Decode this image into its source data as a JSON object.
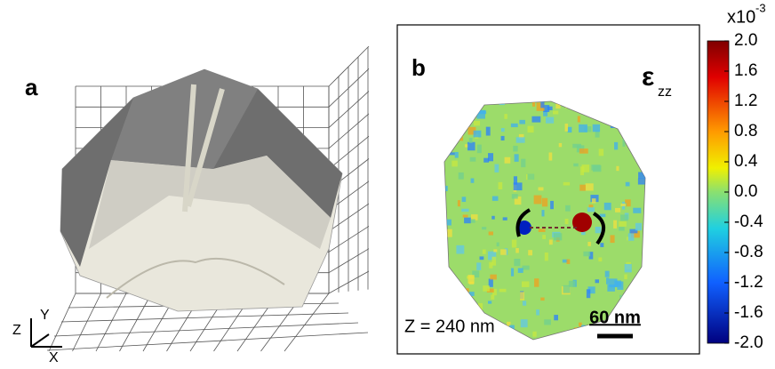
{
  "panel_a": {
    "label": "a",
    "axes": {
      "x": "X",
      "y": "Y",
      "z": "Z"
    }
  },
  "panel_b": {
    "label": "b",
    "strain_symbol": "ε",
    "strain_subscript": "zz",
    "depth_label": "Z = 240 nm",
    "scale_bar": "60 nm"
  },
  "colorbar": {
    "multiplier": "x10",
    "exponent": "-3",
    "ticks": [
      "2.0",
      "1.6",
      "1.2",
      "0.8",
      "0.4",
      "0.0",
      "-0.4",
      "-0.8",
      "-1.2",
      "-1.6",
      "-2.0"
    ]
  }
}
